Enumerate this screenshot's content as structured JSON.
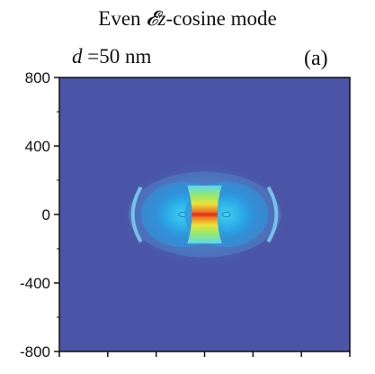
{
  "chart_data": {
    "type": "heatmap",
    "title": {
      "prefix": "Even ",
      "field_symbol": "𝓔",
      "field_subscript": "z",
      "suffix": "-cosine mode"
    },
    "annotation": {
      "var": "d",
      "text": " =50 nm"
    },
    "panel_label": "(a)",
    "xlabel": "",
    "ylabel": "",
    "ylim": [
      -800,
      800
    ],
    "y_ticks": [
      800,
      400,
      0,
      -400,
      -800
    ],
    "y_tick_labels": [
      "800",
      "400",
      "0",
      "-400",
      "-800"
    ],
    "x_tick_count": 7,
    "grid": false,
    "legend": "none",
    "colormap": "jet",
    "background_color": "#4a55a7",
    "field": {
      "description_units": "normalized field magnitude",
      "peak_value": 1.0,
      "peak_location": [
        0,
        0
      ],
      "lobes": [
        {
          "center": [
            -120,
            0
          ],
          "value": 0.45
        },
        {
          "center": [
            120,
            0
          ],
          "value": 0.45
        }
      ],
      "arc_extent_y": [
        -150,
        150
      ],
      "arc_extent_x": [
        -420,
        420
      ]
    }
  }
}
